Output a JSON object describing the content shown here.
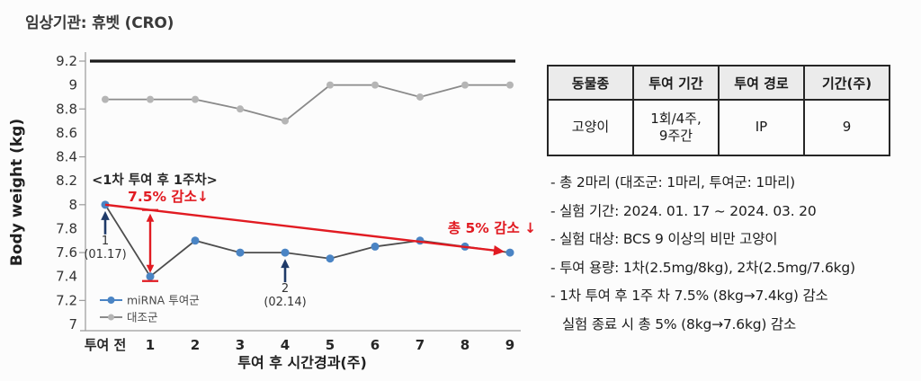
{
  "page": {
    "title": "임상기관: 휴벳 (CRO)"
  },
  "chart_data": {
    "type": "line",
    "title": "",
    "ylabel": "Body weight (kg)",
    "xlabel": "투여 후 시간경과(주)",
    "ylim": [
      7.0,
      9.2
    ],
    "ytick_step": 0.2,
    "grid": false,
    "legend_position": "inside-bottom-left",
    "categories": [
      "투여 전",
      "1",
      "2",
      "3",
      "4",
      "5",
      "6",
      "7",
      "8",
      "9"
    ],
    "series": [
      {
        "name": "miRNA 투여군",
        "marker_color": "#4a84c4",
        "line_color": "#4d4d4d",
        "values": [
          8.0,
          7.4,
          7.7,
          7.6,
          7.6,
          7.55,
          7.65,
          7.7,
          7.65,
          7.6
        ]
      },
      {
        "name": "대조군",
        "marker_color": "#b5b5b5",
        "line_color": "#8a8a8a",
        "values": [
          8.88,
          8.88,
          8.88,
          8.8,
          8.7,
          9.0,
          9.0,
          8.9,
          9.0,
          9.0
        ]
      }
    ],
    "reference_line": {
      "value": 9.2,
      "color": "#1a1a1a"
    },
    "trend_arrow": {
      "from_cat": 0,
      "from_value": 8.0,
      "to_cat": 9,
      "to_value": 7.6,
      "color": "#e11b22"
    },
    "drop_arrow": {
      "cat": 1,
      "from_value": 8.0,
      "to_value": 7.4,
      "color": "#e11b22"
    },
    "annotations": [
      {
        "id": "week1-header",
        "text": "<1차 투여 후 1주차>",
        "color": "#262626"
      },
      {
        "id": "week1-drop",
        "text": "7.5% 감소↓",
        "color": "#e11b22"
      },
      {
        "id": "total-drop",
        "text": "총 5% 감소 ↓",
        "color": "#e11b22"
      }
    ],
    "dose_markers": [
      {
        "label": "1",
        "date": "(01.17)",
        "cat": 0,
        "color": "#1f3a68"
      },
      {
        "label": "2",
        "date": "(02.14)",
        "cat": 4,
        "color": "#1f3a68"
      }
    ]
  },
  "study_table": {
    "headers": [
      "동물종",
      "투여 기간",
      "투여 경로",
      "기간(주)"
    ],
    "rows": [
      [
        "고양이",
        "1회/4주,\n9주간",
        "IP",
        "9"
      ]
    ]
  },
  "notes": [
    {
      "text": "- 총 2마리 (대조군: 1마리, 투여군: 1마리)"
    },
    {
      "text": "- 실험 기간: 2024. 01. 17 ~ 2024. 03. 20"
    },
    {
      "text": "- 실험 대상: BCS 9 이상의 비만 고양이"
    },
    {
      "text": "- 투여 용량: 1차(2.5mg/8kg), 2차(2.5mg/7.6kg)"
    },
    {
      "text": "- 1차 투여 후 1주 차 7.5% (8kg→7.4kg) 감소"
    },
    {
      "text": "실험 종료 시 총 5% (8kg→7.6kg) 감소",
      "indent": true
    }
  ]
}
